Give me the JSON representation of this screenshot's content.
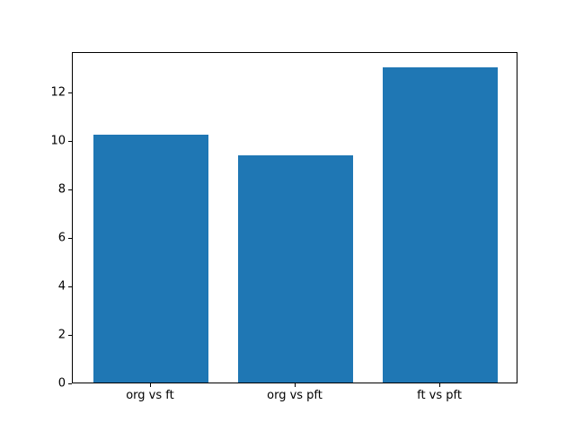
{
  "chart_data": {
    "type": "bar",
    "categories": [
      "org vs ft",
      "org vs pft",
      "ft vs pft"
    ],
    "values": [
      10.2,
      9.35,
      13.0
    ],
    "title": "",
    "xlabel": "",
    "ylabel": "",
    "xlim": [
      -0.54,
      2.54
    ],
    "ylim": [
      0,
      13.65
    ],
    "yticks": [
      0,
      2,
      4,
      6,
      8,
      10,
      12
    ],
    "bar_width": 0.8,
    "bar_color": "#1f77b4",
    "background_color": "#ffffff",
    "grid": false,
    "legend": null
  }
}
